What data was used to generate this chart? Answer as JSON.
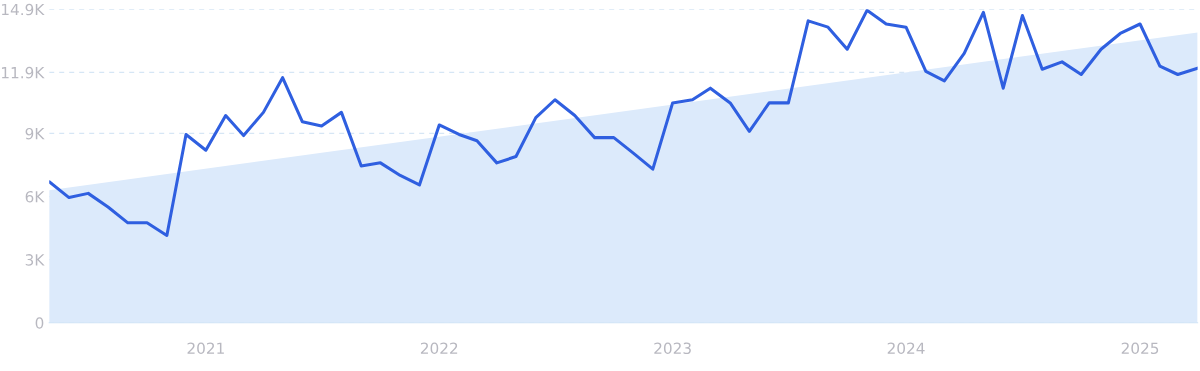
{
  "chart_data": {
    "type": "line",
    "x": [
      "2020-05",
      "2020-06",
      "2020-07",
      "2020-08",
      "2020-09",
      "2020-10",
      "2020-11",
      "2020-12",
      "2021-01",
      "2021-02",
      "2021-03",
      "2021-04",
      "2021-05",
      "2021-06",
      "2021-07",
      "2021-08",
      "2021-09",
      "2021-10",
      "2021-11",
      "2021-12",
      "2022-01",
      "2022-02",
      "2022-03",
      "2022-04",
      "2022-05",
      "2022-06",
      "2022-07",
      "2022-08",
      "2022-09",
      "2022-10",
      "2022-11",
      "2022-12",
      "2023-01",
      "2023-02",
      "2023-03",
      "2023-04",
      "2023-05",
      "2023-06",
      "2023-07",
      "2023-08",
      "2023-09",
      "2023-10",
      "2023-11",
      "2023-12",
      "2024-01",
      "2024-02",
      "2024-03",
      "2024-04",
      "2024-05",
      "2024-06",
      "2024-07",
      "2024-08",
      "2024-09",
      "2024-10",
      "2024-11",
      "2024-12",
      "2025-01",
      "2025-02",
      "2025-03",
      "2025-04"
    ],
    "series": [
      {
        "type": "area",
        "color": "#dceafb",
        "x": [
          "2020-05",
          "2025-04"
        ],
        "values": [
          6300,
          13800
        ]
      },
      {
        "color": "#2f5fe0",
        "values": [
          6700,
          5950,
          6150,
          5500,
          4750,
          4750,
          4150,
          8950,
          8200,
          9850,
          8900,
          10000,
          11650,
          9550,
          9350,
          10000,
          7450,
          7600,
          7000,
          6550,
          9400,
          8950,
          8650,
          7600,
          7900,
          9750,
          10600,
          9850,
          8800,
          8800,
          8050,
          7300,
          10450,
          10600,
          11150,
          10450,
          9100,
          10450,
          10450,
          14350,
          14050,
          13000,
          14850,
          14200,
          14050,
          11950,
          11500,
          12800,
          14750,
          11150,
          14600,
          12050,
          12400,
          11800,
          13000,
          13750,
          14200,
          12200,
          11800,
          12100
        ]
      }
    ],
    "xlim": [
      "2020-05",
      "2025-04"
    ],
    "xticks": [
      {
        "value": "2021-01",
        "label": "2021"
      },
      {
        "value": "2022-01",
        "label": "2022"
      },
      {
        "value": "2023-01",
        "label": "2023"
      },
      {
        "value": "2024-01",
        "label": "2024"
      },
      {
        "value": "2025-01",
        "label": "2025"
      }
    ],
    "ylim": [
      0,
      14900
    ],
    "yticks": [
      0,
      {
        "value": 3000,
        "label": "3K"
      },
      {
        "value": 6000,
        "label": "6K"
      },
      {
        "value": 9000,
        "label": "9K"
      },
      {
        "value": 11900,
        "label": "11.9K"
      },
      {
        "value": 14900,
        "label": "14.9K"
      }
    ],
    "grid": "y",
    "marker": "none"
  }
}
